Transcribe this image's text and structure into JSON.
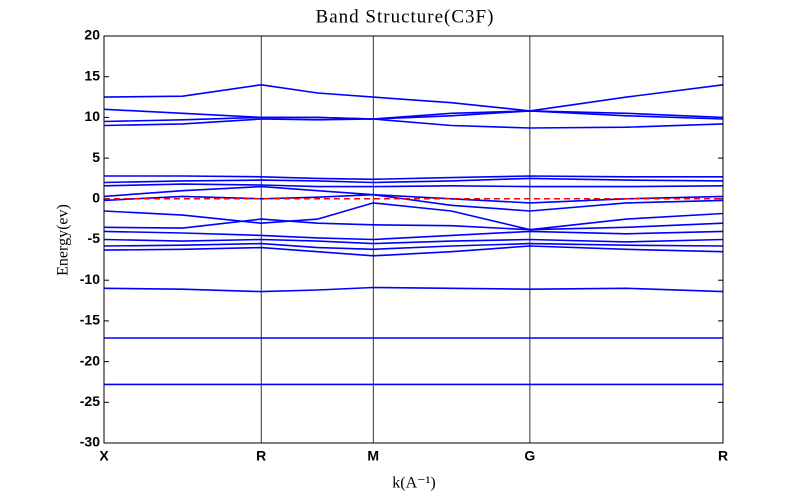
{
  "chart_data": {
    "type": "line",
    "title": "Band Structure(C3F)",
    "x_label": "k(A⁻¹)",
    "y_label": "Energy(ev)",
    "xlim": [
      0,
      1
    ],
    "xticks": [
      {
        "value": 0,
        "label": "X"
      },
      {
        "value": 0.254,
        "label": "R"
      },
      {
        "value": 0.435,
        "label": "M"
      },
      {
        "value": 0.688,
        "label": "G"
      },
      {
        "value": 1,
        "label": "R"
      }
    ],
    "ylim": [
      -30,
      20
    ],
    "yticks": [
      20,
      15,
      10,
      5,
      0,
      -5,
      -10,
      -15,
      -20,
      -25,
      -30
    ],
    "color": "#0000ff",
    "fermi_level": 0,
    "fermi_color": "#ff0000",
    "x": [
      0,
      0.127,
      0.254,
      0.345,
      0.435,
      0.561,
      0.688,
      0.844,
      1
    ],
    "series": [
      {
        "values": [
          12.5,
          12.6,
          14,
          13,
          12.5,
          11.8,
          10.8,
          12.5,
          14
        ]
      },
      {
        "values": [
          11,
          10.5,
          10,
          10,
          9.8,
          10.5,
          10.8,
          10.5,
          10
        ]
      },
      {
        "values": [
          9.5,
          9.7,
          10,
          10,
          9.8,
          10.2,
          10.8,
          10.2,
          9.8
        ]
      },
      {
        "values": [
          9,
          9.2,
          9.8,
          9.7,
          9.8,
          9,
          8.7,
          8.8,
          9.2
        ]
      },
      {
        "values": [
          2.8,
          2.8,
          2.7,
          2.5,
          2.4,
          2.6,
          2.8,
          2.7,
          2.7
        ]
      },
      {
        "values": [
          2,
          2.2,
          2.3,
          2.2,
          2,
          2.2,
          2.5,
          2.3,
          2.2
        ]
      },
      {
        "values": [
          1.6,
          1.8,
          1.7,
          1.5,
          1.5,
          1.6,
          1.5,
          1.5,
          1.6
        ]
      },
      {
        "values": [
          0.3,
          1,
          1.5,
          1,
          0.5,
          0,
          -0.5,
          0,
          0.3
        ]
      },
      {
        "values": [
          -0.2,
          0.3,
          0,
          0.2,
          0.5,
          -0.8,
          -1.5,
          -0.5,
          -0.2
        ]
      },
      {
        "values": [
          -1.5,
          -2,
          -3,
          -2.5,
          -0.5,
          -1.5,
          -3.8,
          -2.5,
          -1.8
        ]
      },
      {
        "values": [
          -3.5,
          -3.6,
          -2.5,
          -3,
          -3.2,
          -3.3,
          -3.8,
          -3.5,
          -3
        ]
      },
      {
        "values": [
          -4,
          -4.2,
          -4.5,
          -4.8,
          -5,
          -4.5,
          -4,
          -4.3,
          -4
        ]
      },
      {
        "values": [
          -5,
          -5.2,
          -5,
          -5.2,
          -5.5,
          -5.2,
          -5,
          -5.3,
          -5
        ]
      },
      {
        "values": [
          -5.8,
          -5.7,
          -5.5,
          -6,
          -6.2,
          -5.8,
          -5.5,
          -5.7,
          -5.8
        ]
      },
      {
        "values": [
          -6.3,
          -6.2,
          -6,
          -6.5,
          -7,
          -6.5,
          -5.8,
          -6.2,
          -6.5
        ]
      },
      {
        "values": [
          -11,
          -11.1,
          -11.4,
          -11.2,
          -10.9,
          -11,
          -11.1,
          -11,
          -11.4
        ]
      },
      {
        "values": [
          -17.1,
          -17.1,
          -17.1,
          -17.1,
          -17.1,
          -17.1,
          -17.1,
          -17.1,
          -17.1
        ]
      },
      {
        "values": [
          -22.8,
          -22.8,
          -22.8,
          -22.8,
          -22.8,
          -22.8,
          -22.8,
          -22.8,
          -22.8
        ]
      }
    ]
  }
}
